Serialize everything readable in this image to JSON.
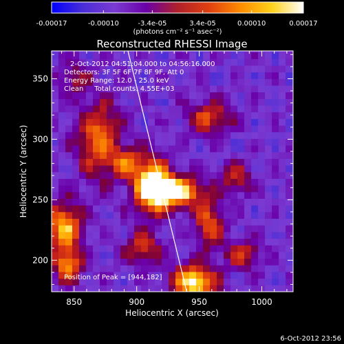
{
  "colorbar": {
    "tick_values": [
      -0.00017,
      -0.0001,
      -3.4e-05,
      3.4e-05,
      0.0001,
      0.00017
    ],
    "tick_labels": [
      "-0.00017",
      "-0.00010",
      "-3.4e-05",
      "3.4e-05",
      "0.00010",
      "0.00017"
    ],
    "range": [
      -0.00017,
      0.00017
    ],
    "units_label": "(photons cm⁻² s⁻¹ asec⁻²)",
    "colors": [
      "#0000ff",
      "#4a2dd6",
      "#7a3bd2",
      "#6a00a8",
      "#b0202a",
      "#e04010",
      "#ff8c00",
      "#ffd21a",
      "#ffffff"
    ]
  },
  "chart_data": {
    "type": "heatmap",
    "title": "Reconstructed RHESSI Image",
    "xlabel": "Heliocentric X (arcsec)",
    "ylabel": "Heliocentric Y (arcsec)",
    "xlim": [
      832,
      1025
    ],
    "ylim": [
      174,
      373
    ],
    "x_ticks": [
      850,
      900,
      950,
      1000
    ],
    "y_ticks": [
      200,
      250,
      300,
      350
    ],
    "annotations": [
      "2-Oct-2012 04:51:04.000 to 04:56:16.000",
      "Detectors: 3F 5F 6F 7F 8F 9F, Att 0",
      "Energy Range: 12.0 - 25.0 keV",
      "Clean     Total counts: 4.55E+03"
    ],
    "peak_label": "Position of Peak = [944,182]",
    "peak": [
      944,
      182
    ],
    "limb_line": [
      [
        893,
        373
      ],
      [
        940,
        174
      ]
    ],
    "sources": [
      {
        "x": 912,
        "y": 262,
        "sx": 10,
        "sy": 16,
        "amp": 1.0
      },
      {
        "x": 932,
        "y": 257,
        "sx": 14,
        "sy": 9,
        "amp": 0.95
      },
      {
        "x": 946,
        "y": 182,
        "sx": 12,
        "sy": 10,
        "amp": 1.0
      },
      {
        "x": 842,
        "y": 228,
        "sx": 10,
        "sy": 14,
        "amp": 0.8
      },
      {
        "x": 845,
        "y": 196,
        "sx": 8,
        "sy": 10,
        "amp": 0.7
      },
      {
        "x": 870,
        "y": 300,
        "sx": 12,
        "sy": 22,
        "amp": 0.65
      },
      {
        "x": 958,
        "y": 230,
        "sx": 8,
        "sy": 14,
        "amp": 0.6
      },
      {
        "x": 985,
        "y": 205,
        "sx": 10,
        "sy": 8,
        "amp": 0.5
      },
      {
        "x": 958,
        "y": 318,
        "sx": 12,
        "sy": 10,
        "amp": 0.55
      },
      {
        "x": 905,
        "y": 210,
        "sx": 10,
        "sy": 10,
        "amp": 0.5
      },
      {
        "x": 892,
        "y": 280,
        "sx": 8,
        "sy": 9,
        "amp": 0.55
      },
      {
        "x": 980,
        "y": 268,
        "sx": 9,
        "sy": 9,
        "amp": 0.45
      },
      {
        "x": 850,
        "y": 350,
        "sx": 9,
        "sy": 9,
        "amp": 0.35
      }
    ]
  },
  "timestamp": "6-Oct-2012 23:56"
}
